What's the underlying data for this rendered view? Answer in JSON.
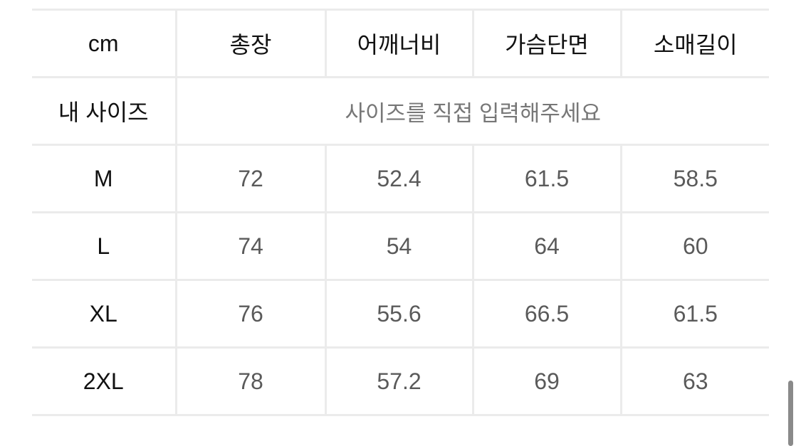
{
  "table": {
    "headers": [
      "cm",
      "총장",
      "어깨너비",
      "가슴단면",
      "소매길이"
    ],
    "my_size": {
      "label": "내 사이즈",
      "placeholder": "사이즈를 직접 입력해주세요"
    },
    "rows": [
      {
        "size": "M",
        "values": [
          "72",
          "52.4",
          "61.5",
          "58.5"
        ]
      },
      {
        "size": "L",
        "values": [
          "74",
          "54",
          "64",
          "60"
        ]
      },
      {
        "size": "XL",
        "values": [
          "76",
          "55.6",
          "66.5",
          "61.5"
        ]
      },
      {
        "size": "2XL",
        "values": [
          "78",
          "57.2",
          "69",
          "63"
        ]
      }
    ]
  }
}
